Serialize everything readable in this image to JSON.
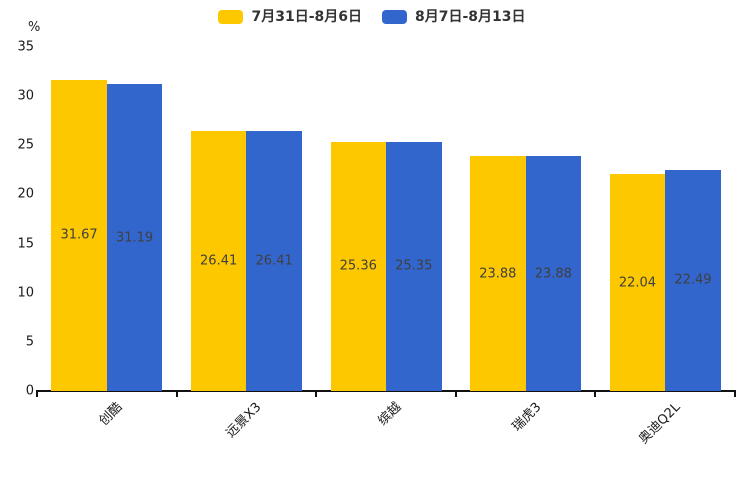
{
  "chart_data": {
    "type": "bar",
    "title": "",
    "ylabel": "%",
    "xlabel": "",
    "ylim": [
      0,
      35
    ],
    "yticks": [
      0,
      5,
      10,
      15,
      20,
      25,
      30,
      35
    ],
    "grid": false,
    "legend_position": "top-center",
    "value_labels": "inside-center",
    "x_label_rotation_deg": 45,
    "categories": [
      "创酷",
      "远景X3",
      "缤越",
      "瑞虎3",
      "奥迪Q2L"
    ],
    "series": [
      {
        "name": "7月31日-8月6日",
        "color": "#FDC800",
        "values": [
          31.67,
          26.41,
          25.36,
          23.88,
          22.04
        ]
      },
      {
        "name": "8月7日-8月13日",
        "color": "#3366CC",
        "values": [
          31.19,
          26.41,
          25.35,
          23.88,
          22.49
        ]
      }
    ]
  },
  "colors": {
    "series1": "#FDC800",
    "series2": "#3366CC",
    "axis": "#111111",
    "value_label": "#3f3f3f",
    "tick_label": "#1a1a1a",
    "legend_text": "#333333",
    "background": "#ffffff"
  }
}
